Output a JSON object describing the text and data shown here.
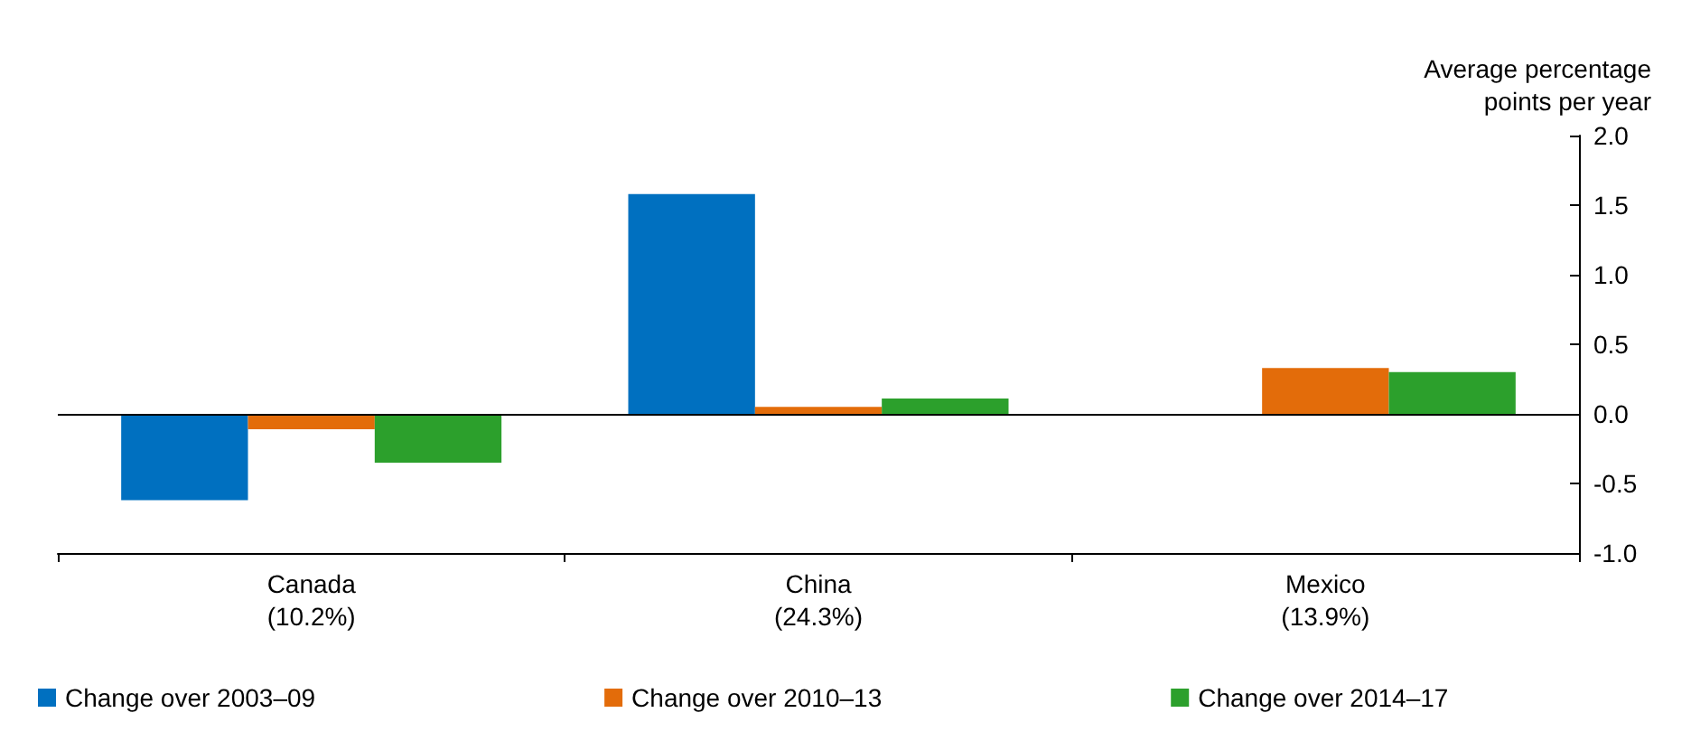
{
  "chart_data": {
    "type": "bar",
    "ylabel": "Average percentage\npoints per year",
    "categories": [
      "Canada\n(10.2%)",
      "China\n(24.3%)",
      "Mexico\n(13.9%)"
    ],
    "series": [
      {
        "name": "Change over 2003–09",
        "color": "#0070c0",
        "values": [
          -0.62,
          1.58,
          null
        ]
      },
      {
        "name": "Change over 2010–13",
        "color": "#e36c0a",
        "values": [
          -0.11,
          0.05,
          0.33
        ]
      },
      {
        "name": "Change over 2014–17",
        "color": "#2ca02c",
        "values": [
          -0.35,
          0.11,
          0.3
        ]
      }
    ],
    "ylim": [
      -1,
      2
    ],
    "yticks": [
      {
        "value": -1,
        "label": "-1.0"
      },
      -0.5,
      {
        "value": 0,
        "label": "0.0"
      },
      0.5,
      {
        "value": 1,
        "label": "1.0"
      },
      1.5,
      {
        "value": 2,
        "label": "2.0"
      }
    ],
    "ref_lines": [
      {
        "axis": "y",
        "value": 0,
        "color": "#000000"
      }
    ],
    "grid": false,
    "legend": "bottom"
  }
}
